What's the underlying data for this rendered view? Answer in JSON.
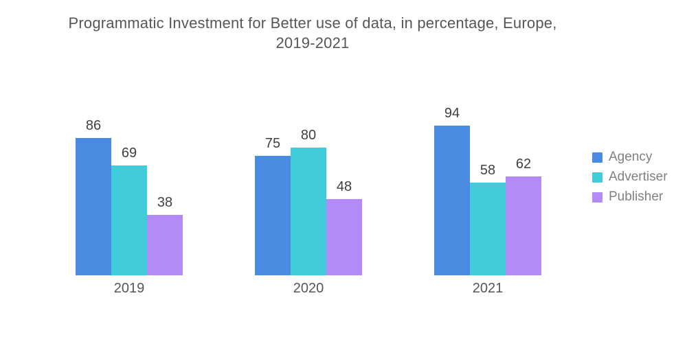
{
  "title_lines": [
    "Programmatic Investment for Better use of data, in percentage, Europe,",
    "2019-2021"
  ],
  "chart_data": {
    "type": "bar",
    "title": "Programmatic Investment for Better use of data, in percentage, Europe, 2019-2021",
    "categories": [
      "2019",
      "2020",
      "2021"
    ],
    "series": [
      {
        "name": "Agency",
        "color": "#4a8be2",
        "values": [
          86,
          75,
          94
        ]
      },
      {
        "name": "Advertiser",
        "color": "#40ccd8",
        "values": [
          69,
          80,
          58
        ]
      },
      {
        "name": "Publisher",
        "color": "#b38bf6",
        "values": [
          38,
          48,
          62
        ]
      }
    ],
    "ylim": [
      0,
      100
    ],
    "xlabel": "",
    "ylabel": "",
    "grid": false,
    "axes_visible": false,
    "value_labels": true,
    "legend_position": "right"
  }
}
